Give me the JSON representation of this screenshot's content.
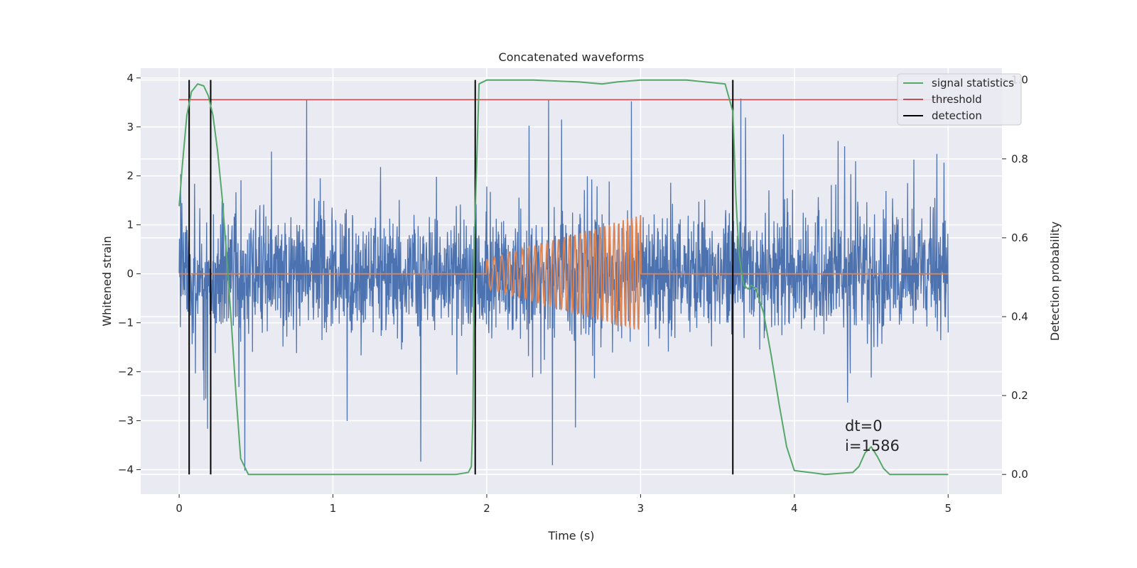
{
  "chart_data": {
    "type": "line",
    "title": "Concatenated waveforms",
    "xlabel": "Time (s)",
    "ylabel_left": "Whitened strain",
    "ylabel_right": "Detection probability",
    "xlim": [
      -0.25,
      5.35
    ],
    "ylim_left": [
      -4.5,
      4.2
    ],
    "ylim_right": [
      -0.05,
      1.03
    ],
    "x_ticks": [
      0,
      1,
      2,
      3,
      4,
      5
    ],
    "x_tick_labels": [
      "0",
      "1",
      "2",
      "3",
      "4",
      "5"
    ],
    "y_left_ticks": [
      4,
      3,
      2,
      1,
      0,
      -1,
      -2,
      -3,
      -4
    ],
    "y_left_tick_labels": [
      "4",
      "3",
      "2",
      "1",
      "0",
      "−1",
      "−2",
      "−3",
      "−4"
    ],
    "y_right_ticks": [
      1.0,
      0.8,
      0.6,
      0.4,
      0.2,
      0.0
    ],
    "y_right_tick_labels": [
      "1.0",
      "0.8",
      "0.6",
      "0.4",
      "0.2",
      "0.0"
    ],
    "grid": true,
    "background": "#eaeaf2",
    "legend": {
      "placement": "top-right",
      "entries": [
        {
          "label": "signal statistics",
          "color": "#55a868"
        },
        {
          "label": "threshold",
          "color": "#c44e52"
        },
        {
          "label": "detection",
          "color": "#000000"
        }
      ]
    },
    "series": [
      {
        "name": "whitened strain",
        "axis": "left",
        "color": "#4c72b0",
        "x_range": [
          0,
          5
        ],
        "amplitude_typical": 1.0,
        "amplitude_peaks": [
          3.85,
          -4.15
        ]
      },
      {
        "name": "injected waveform",
        "axis": "left",
        "color": "#dd8452",
        "x_range": [
          0,
          5
        ],
        "chirp": {
          "start": 2.0,
          "end": 3.0,
          "amp_start": 0.3,
          "amp_end": 1.2,
          "cycles": 28
        }
      },
      {
        "name": "signal statistics",
        "axis": "right",
        "color": "#55a868",
        "x": [
          0.0,
          0.02,
          0.05,
          0.08,
          0.12,
          0.16,
          0.19,
          0.22,
          0.25,
          0.28,
          0.31,
          0.34,
          0.37,
          0.4,
          0.45,
          0.6,
          1.0,
          1.5,
          1.8,
          1.88,
          1.9,
          1.91,
          1.92,
          1.95,
          2.0,
          2.3,
          2.6,
          2.75,
          2.85,
          3.0,
          3.3,
          3.55,
          3.6,
          3.62,
          3.64,
          3.67,
          3.7,
          3.72,
          3.75,
          3.8,
          3.85,
          3.9,
          3.95,
          4.0,
          4.2,
          4.38,
          4.42,
          4.46,
          4.5,
          4.54,
          4.58,
          4.62,
          4.8,
          5.0
        ],
        "y": [
          0.68,
          0.78,
          0.91,
          0.97,
          0.99,
          0.985,
          0.96,
          0.91,
          0.82,
          0.7,
          0.55,
          0.38,
          0.2,
          0.04,
          0.0,
          0.0,
          0.0,
          0.0,
          0.0,
          0.005,
          0.02,
          0.15,
          0.6,
          0.99,
          1.0,
          1.0,
          0.995,
          0.99,
          0.995,
          1.0,
          1.0,
          0.99,
          0.92,
          0.7,
          0.56,
          0.48,
          0.47,
          0.48,
          0.47,
          0.41,
          0.3,
          0.18,
          0.07,
          0.01,
          0.0,
          0.005,
          0.02,
          0.055,
          0.07,
          0.045,
          0.015,
          0.0,
          0.0,
          0.0
        ]
      },
      {
        "name": "threshold",
        "axis": "right",
        "color": "#c44e52",
        "x": [
          0,
          5
        ],
        "y": [
          0.95,
          0.95
        ]
      }
    ],
    "detections": {
      "color": "#000000",
      "x": [
        0.065,
        0.205,
        1.925,
        3.6
      ],
      "ymin": 0.0,
      "ymax": 1.0
    },
    "annotation": {
      "lines": [
        "dt=0",
        "i=1586"
      ],
      "x": 4.5,
      "y": 0.11
    }
  }
}
